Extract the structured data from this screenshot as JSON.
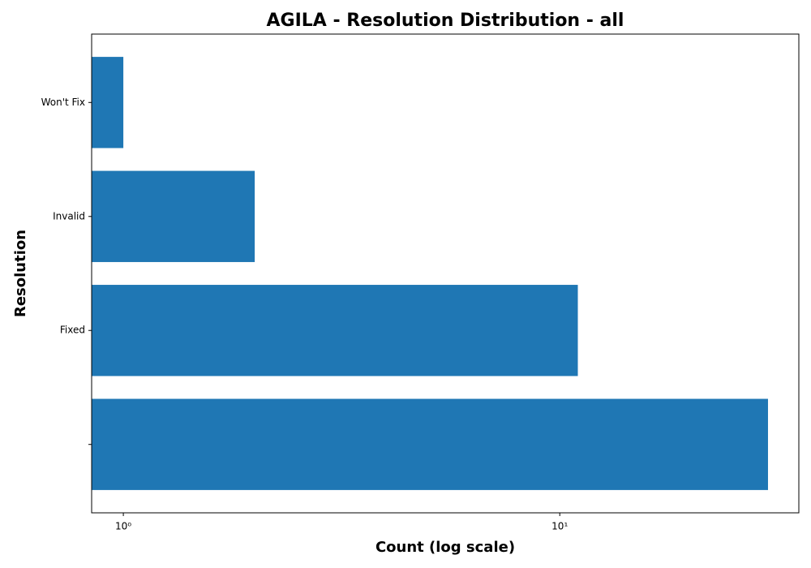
{
  "chart_data": {
    "type": "bar",
    "orientation": "horizontal",
    "title": "AGILA - Resolution Distribution - all",
    "x_label": "Count (log scale)",
    "y_label": "Resolution",
    "categories": [
      null,
      "Fixed",
      "Invalid",
      "Won't Fix"
    ],
    "values": [
      30,
      11,
      2,
      1
    ],
    "color": "#1f77b4",
    "xscale": "log",
    "xlim": [
      0.846,
      35.3
    ],
    "xticks": [
      {
        "value": 1,
        "label": "10⁰"
      },
      {
        "value": 10,
        "label": "10¹"
      }
    ],
    "grid": false
  }
}
